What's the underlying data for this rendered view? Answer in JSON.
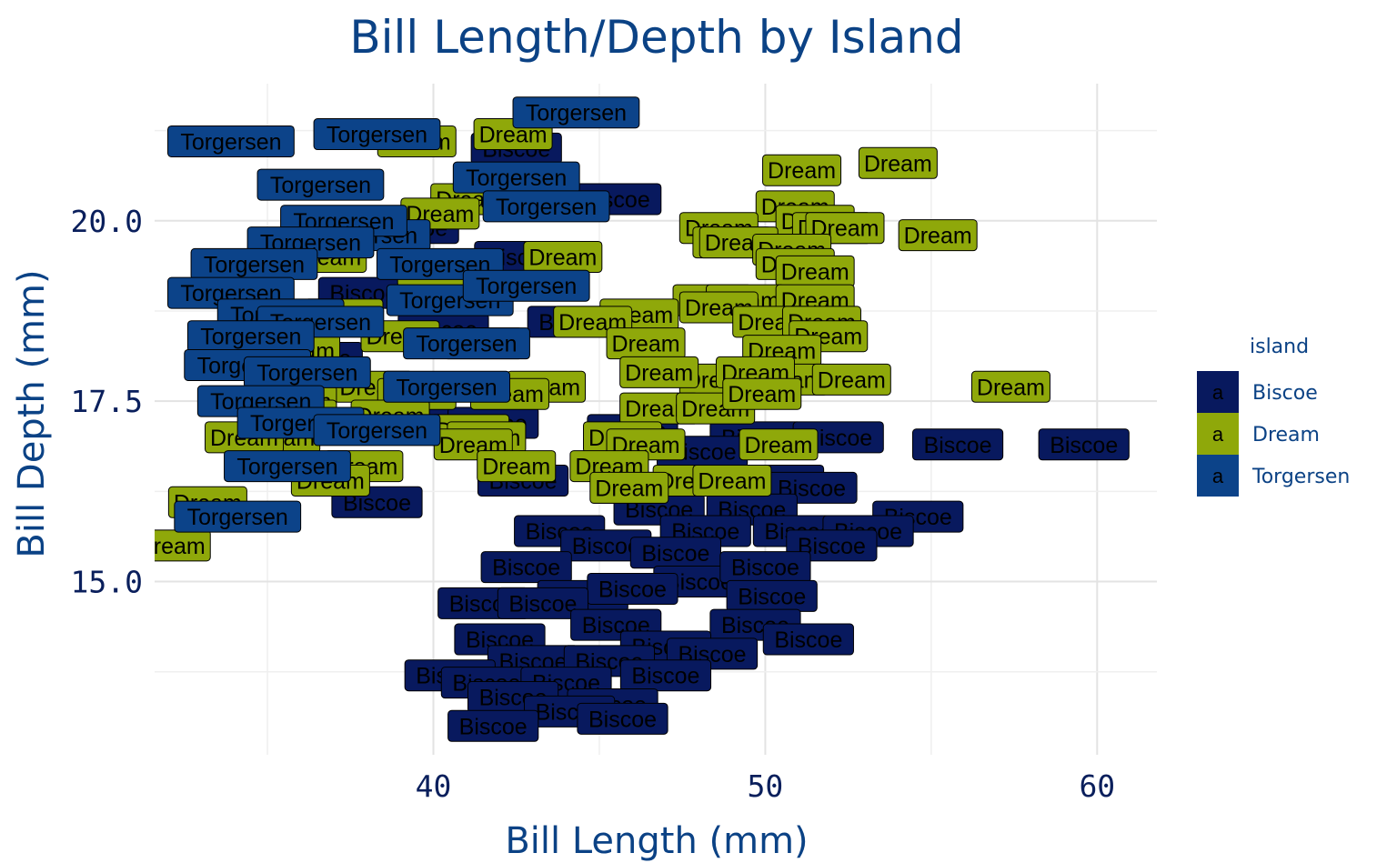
{
  "chart_data": {
    "type": "scatter",
    "title": "Bill Length/Depth by Island",
    "xlabel": "Bill Length (mm)",
    "ylabel": "Bill Depth (mm)",
    "xlim": [
      31.6,
      61.8
    ],
    "ylim": [
      12.6,
      21.9
    ],
    "xticks": [
      40,
      50,
      60
    ],
    "yticks": [
      15.0,
      17.5,
      20.0
    ],
    "xtick_labels": [
      "40",
      "50",
      "60"
    ],
    "ytick_labels": [
      "15.0",
      "17.5",
      "20.0"
    ],
    "grid": true,
    "legend": {
      "title": "island",
      "position": "right",
      "key_glyph": "a"
    },
    "series": [
      {
        "name": "Biscoe",
        "color": "#08195e",
        "points": [
          [
            42.5,
            21.0
          ],
          [
            45.5,
            20.3
          ],
          [
            39.4,
            19.9
          ],
          [
            42.6,
            19.5
          ],
          [
            37.9,
            19.0
          ],
          [
            44.2,
            18.6
          ],
          [
            40.3,
            18.5
          ],
          [
            36.5,
            18.1
          ],
          [
            35.7,
            17.9
          ],
          [
            39.1,
            17.5
          ],
          [
            41.8,
            17.2
          ],
          [
            46.0,
            17.1
          ],
          [
            49.7,
            17.0
          ],
          [
            52.2,
            17.0
          ],
          [
            55.8,
            16.9
          ],
          [
            59.6,
            16.9
          ],
          [
            48.1,
            16.8
          ],
          [
            42.7,
            16.4
          ],
          [
            46.1,
            16.3
          ],
          [
            50.4,
            16.4
          ],
          [
            51.4,
            16.3
          ],
          [
            38.3,
            16.1
          ],
          [
            46.8,
            16.0
          ],
          [
            49.6,
            16.0
          ],
          [
            54.6,
            15.9
          ],
          [
            43.8,
            15.7
          ],
          [
            48.2,
            15.7
          ],
          [
            51.0,
            15.7
          ],
          [
            53.1,
            15.7
          ],
          [
            52.0,
            15.5
          ],
          [
            45.2,
            15.5
          ],
          [
            47.3,
            15.4
          ],
          [
            42.8,
            15.2
          ],
          [
            48.0,
            15.0
          ],
          [
            50.0,
            15.2
          ],
          [
            44.5,
            14.8
          ],
          [
            46.0,
            14.9
          ],
          [
            50.2,
            14.8
          ],
          [
            41.5,
            14.7
          ],
          [
            43.3,
            14.7
          ],
          [
            45.5,
            14.4
          ],
          [
            49.7,
            14.4
          ],
          [
            42.0,
            14.2
          ],
          [
            47.0,
            14.1
          ],
          [
            51.3,
            14.2
          ],
          [
            43.0,
            13.9
          ],
          [
            45.3,
            13.9
          ],
          [
            48.4,
            14.0
          ],
          [
            40.5,
            13.7
          ],
          [
            41.6,
            13.6
          ],
          [
            44.0,
            13.6
          ],
          [
            47.0,
            13.7
          ],
          [
            42.4,
            13.4
          ],
          [
            45.4,
            13.3
          ],
          [
            44.1,
            13.2
          ],
          [
            41.8,
            13.0
          ],
          [
            45.7,
            13.1
          ]
        ]
      },
      {
        "name": "Dream",
        "color": "#8fa80a",
        "points": [
          [
            42.4,
            21.2
          ],
          [
            39.5,
            21.1
          ],
          [
            54.0,
            20.8
          ],
          [
            51.1,
            20.7
          ],
          [
            41.1,
            20.3
          ],
          [
            50.9,
            20.2
          ],
          [
            40.2,
            20.1
          ],
          [
            51.5,
            20.0
          ],
          [
            52.0,
            19.9
          ],
          [
            48.6,
            19.9
          ],
          [
            52.4,
            19.9
          ],
          [
            49.0,
            19.7
          ],
          [
            55.2,
            19.8
          ],
          [
            49.2,
            19.7
          ],
          [
            50.8,
            19.6
          ],
          [
            36.8,
            19.5
          ],
          [
            43.9,
            19.5
          ],
          [
            50.9,
            19.4
          ],
          [
            40.1,
            19.3
          ],
          [
            51.5,
            19.3
          ],
          [
            48.4,
            18.9
          ],
          [
            49.4,
            18.9
          ],
          [
            51.5,
            18.9
          ],
          [
            48.6,
            18.8
          ],
          [
            37.3,
            18.7
          ],
          [
            46.2,
            18.7
          ],
          [
            44.8,
            18.6
          ],
          [
            50.2,
            18.6
          ],
          [
            39.0,
            18.4
          ],
          [
            51.7,
            18.6
          ],
          [
            51.9,
            18.4
          ],
          [
            36.0,
            18.2
          ],
          [
            46.4,
            18.3
          ],
          [
            50.5,
            18.2
          ],
          [
            41.5,
            18.3
          ],
          [
            48.6,
            17.8
          ],
          [
            50.7,
            17.8
          ],
          [
            52.6,
            17.8
          ],
          [
            38.2,
            17.7
          ],
          [
            46.8,
            17.9
          ],
          [
            49.7,
            17.9
          ],
          [
            35.9,
            17.5
          ],
          [
            39.5,
            17.6
          ],
          [
            43.4,
            17.7
          ],
          [
            42.3,
            17.6
          ],
          [
            35.9,
            17.3
          ],
          [
            38.7,
            17.3
          ],
          [
            46.8,
            17.4
          ],
          [
            48.5,
            17.4
          ],
          [
            49.9,
            17.6
          ],
          [
            57.4,
            17.7
          ],
          [
            41.1,
            17.1
          ],
          [
            35.4,
            17.0
          ],
          [
            41.6,
            17.0
          ],
          [
            41.2,
            16.9
          ],
          [
            45.7,
            17.0
          ],
          [
            46.4,
            16.9
          ],
          [
            50.4,
            16.9
          ],
          [
            34.3,
            17.0
          ],
          [
            37.9,
            16.6
          ],
          [
            47.8,
            16.4
          ],
          [
            45.3,
            16.6
          ],
          [
            49.0,
            16.4
          ],
          [
            42.5,
            16.6
          ],
          [
            36.9,
            16.4
          ],
          [
            45.9,
            16.3
          ],
          [
            33.2,
            16.1
          ],
          [
            32.1,
            15.5
          ]
        ]
      },
      {
        "name": "Torgersen",
        "color": "#0c4389",
        "points": [
          [
            44.3,
            21.5
          ],
          [
            33.9,
            21.1
          ],
          [
            38.3,
            21.2
          ],
          [
            36.6,
            20.5
          ],
          [
            42.5,
            20.6
          ],
          [
            43.4,
            20.2
          ],
          [
            38.0,
            19.8
          ],
          [
            37.3,
            20.0
          ],
          [
            36.3,
            19.7
          ],
          [
            34.6,
            19.4
          ],
          [
            40.2,
            19.4
          ],
          [
            33.9,
            19.0
          ],
          [
            40.5,
            18.9
          ],
          [
            42.8,
            19.1
          ],
          [
            35.4,
            18.7
          ],
          [
            36.6,
            18.6
          ],
          [
            34.5,
            18.4
          ],
          [
            41.0,
            18.3
          ],
          [
            34.4,
            18.0
          ],
          [
            36.2,
            17.9
          ],
          [
            34.8,
            17.5
          ],
          [
            36.0,
            17.2
          ],
          [
            40.4,
            17.7
          ],
          [
            38.3,
            17.1
          ],
          [
            35.6,
            16.6
          ],
          [
            34.1,
            15.9
          ]
        ]
      }
    ]
  }
}
